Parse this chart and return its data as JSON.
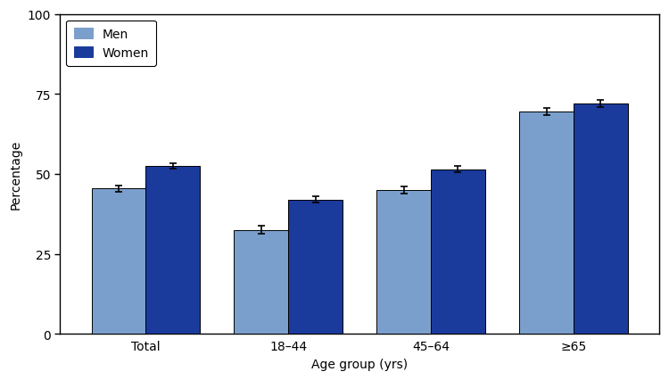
{
  "categories": [
    "Total",
    "18–44",
    "45–64",
    "≥65"
  ],
  "men_values": [
    45.5,
    32.5,
    45.0,
    69.5
  ],
  "women_values": [
    52.5,
    42.0,
    51.5,
    72.0
  ],
  "men_errors": [
    1.0,
    1.2,
    1.2,
    1.2
  ],
  "women_errors": [
    0.8,
    1.0,
    1.0,
    1.0
  ],
  "men_color": "#7B9FCC",
  "women_color": "#1A3A9C",
  "bar_edge_color": "#000000",
  "bar_width": 0.38,
  "ylim": [
    0,
    100
  ],
  "yticks": [
    0,
    25,
    50,
    75,
    100
  ],
  "ylabel": "Percentage",
  "xlabel": "Age group (yrs)",
  "legend_labels": [
    "Men",
    "Women"
  ],
  "legend_loc": "upper left",
  "error_capsize": 3,
  "error_linewidth": 1.2,
  "error_color": "black",
  "figsize": [
    7.5,
    4.27
  ],
  "dpi": 100,
  "plot_bg_color": "#f0f0f0",
  "fig_bg_color": "#ffffff",
  "font_size": 10,
  "axis_linewidth": 1.0
}
